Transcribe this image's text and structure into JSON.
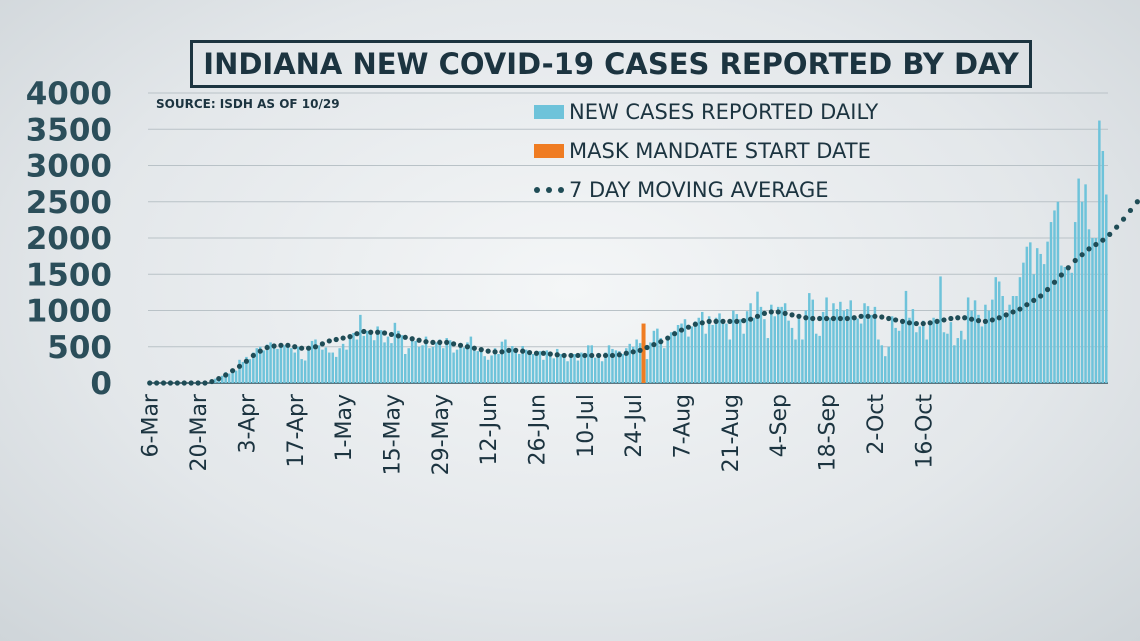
{
  "chart_data": {
    "type": "bar",
    "title": "INDIANA NEW COVID-19 CASES REPORTED BY DAY",
    "source": "SOURCE: ISDH AS OF 10/29",
    "ylim": [
      0,
      4000
    ],
    "yticks": [
      0,
      500,
      1000,
      1500,
      2000,
      2500,
      3000,
      3500,
      4000
    ],
    "start_date": "2020-03-06",
    "xtick_labels": [
      "6-Mar",
      "20-Mar",
      "3-Apr",
      "17-Apr",
      "1-May",
      "15-May",
      "29-May",
      "12-Jun",
      "26-Jun",
      "10-Jul",
      "24-Jul",
      "7-Aug",
      "21-Aug",
      "4-Sep",
      "18-Sep",
      "2-Oct",
      "16-Oct"
    ],
    "grid": true,
    "legend_position": "top-center",
    "series": [
      {
        "name": "NEW CASES REPORTED DAILY",
        "type": "bar",
        "color": "#6ec3da",
        "values": [
          0,
          0,
          0,
          0,
          0,
          0,
          0,
          0,
          0,
          0,
          0,
          0,
          0,
          0,
          0,
          0,
          0,
          0,
          40,
          60,
          80,
          100,
          150,
          130,
          200,
          170,
          320,
          290,
          360,
          330,
          420,
          480,
          500,
          450,
          530,
          560,
          510,
          470,
          500,
          520,
          540,
          480,
          420,
          500,
          330,
          310,
          500,
          580,
          600,
          520,
          460,
          490,
          420,
          420,
          360,
          480,
          540,
          460,
          640,
          690,
          600,
          940,
          650,
          720,
          700,
          590,
          780,
          730,
          560,
          640,
          550,
          830,
          720,
          660,
          400,
          480,
          600,
          580,
          500,
          520,
          640,
          480,
          500,
          560,
          600,
          480,
          620,
          590,
          420,
          460,
          520,
          490,
          560,
          640,
          470,
          440,
          430,
          370,
          320,
          380,
          480,
          400,
          570,
          600,
          420,
          510,
          470,
          400,
          510,
          460,
          430,
          400,
          410,
          440,
          320,
          450,
          380,
          340,
          470,
          400,
          360,
          300,
          390,
          400,
          310,
          420,
          350,
          520,
          520,
          350,
          380,
          300,
          420,
          520,
          470,
          450,
          440,
          400,
          480,
          540,
          500,
          600,
          550,
          480,
          330,
          560,
          720,
          750,
          620,
          480,
          640,
          700,
          720,
          800,
          820,
          880,
          640,
          780,
          850,
          900,
          980,
          680,
          920,
          800,
          900,
          960,
          880,
          820,
          600,
          1000,
          950,
          880,
          680,
          990,
          1100,
          900,
          1260,
          1050,
          880,
          620,
          1080,
          920,
          1050,
          1050,
          1100,
          860,
          760,
          600,
          900,
          600,
          1000,
          1240,
          1150,
          680,
          650,
          980,
          1180,
          900,
          1100,
          1020,
          1120,
          1000,
          1020,
          1140,
          900,
          890,
          820,
          1100,
          1060,
          940,
          1050,
          600,
          520,
          370,
          500,
          920,
          760,
          720,
          880,
          1270,
          900,
          1020,
          700,
          780,
          860,
          600,
          800,
          900,
          860,
          1470,
          700,
          680,
          840,
          520,
          620,
          720,
          600,
          1180,
          1000,
          1140,
          940,
          780,
          1080,
          1000,
          1150,
          1460,
          1400,
          1200,
          950,
          1080,
          1200,
          1200,
          1460,
          1660,
          1880,
          1940,
          1500,
          1860,
          1780,
          1640,
          1950,
          2220,
          2380,
          2500,
          1620,
          1600,
          1560,
          1520,
          2220,
          2820,
          2500,
          2740,
          2120,
          2000,
          2000,
          3620,
          3200,
          2600
        ]
      },
      {
        "name": "MASK MANDATE START DATE",
        "type": "marker",
        "color": "#ef7c22",
        "date": "27-Jul",
        "value": 820
      },
      {
        "name": "7 DAY MOVING AVERAGE",
        "type": "dotted-line",
        "color": "#1f4c56",
        "values": [
          0,
          0,
          0,
          0,
          0,
          0,
          0,
          0,
          0,
          0,
          0,
          0,
          0,
          0,
          0,
          0,
          0,
          0,
          20,
          40,
          60,
          90,
          110,
          140,
          170,
          200,
          230,
          260,
          300,
          340,
          380,
          410,
          440,
          470,
          490,
          500,
          510,
          520,
          520,
          520,
          520,
          510,
          500,
          490,
          480,
          470,
          480,
          490,
          500,
          520,
          540,
          560,
          580,
          590,
          600,
          610,
          620,
          630,
          640,
          660,
          680,
          700,
          710,
          710,
          700,
          700,
          700,
          700,
          690,
          680,
          670,
          660,
          650,
          640,
          630,
          620,
          610,
          600,
          590,
          580,
          570,
          560,
          560,
          560,
          560,
          560,
          560,
          550,
          540,
          530,
          520,
          510,
          500,
          490,
          480,
          470,
          460,
          450,
          440,
          430,
          430,
          430,
          430,
          440,
          450,
          450,
          450,
          450,
          440,
          430,
          420,
          410,
          410,
          410,
          410,
          400,
          400,
          390,
          390,
          390,
          380,
          380,
          380,
          380,
          380,
          380,
          380,
          380,
          380,
          380,
          380,
          380,
          380,
          380,
          380,
          380,
          390,
          400,
          410,
          420,
          430,
          440,
          450,
          470,
          490,
          510,
          530,
          550,
          570,
          590,
          620,
          650,
          680,
          710,
          730,
          750,
          770,
          790,
          810,
          820,
          830,
          840,
          850,
          850,
          850,
          850,
          850,
          850,
          850,
          850,
          850,
          850,
          860,
          870,
          880,
          900,
          920,
          940,
          960,
          970,
          980,
          980,
          980,
          970,
          960,
          950,
          940,
          930,
          920,
          910,
          900,
          890,
          890,
          890,
          890,
          890,
          890,
          890,
          890,
          890,
          890,
          890,
          890,
          890,
          900,
          910,
          920,
          920,
          920,
          920,
          920,
          920,
          910,
          900,
          890,
          880,
          870,
          860,
          850,
          840,
          830,
          820,
          820,
          820,
          820,
          820,
          830,
          840,
          850,
          860,
          870,
          880,
          890,
          900,
          900,
          900,
          900,
          890,
          880,
          870,
          860,
          850,
          850,
          860,
          870,
          880,
          900,
          920,
          940,
          960,
          980,
          1000,
          1020,
          1050,
          1080,
          1110,
          1140,
          1170,
          1200,
          1240,
          1290,
          1340,
          1390,
          1440,
          1490,
          1540,
          1590,
          1640,
          1690,
          1730,
          1770,
          1810,
          1850,
          1880,
          1910,
          1940,
          1970,
          2000,
          2050,
          2100,
          2150,
          2200,
          2260,
          2320,
          2380,
          2440,
          2500,
          2560,
          2620
        ]
      }
    ]
  }
}
